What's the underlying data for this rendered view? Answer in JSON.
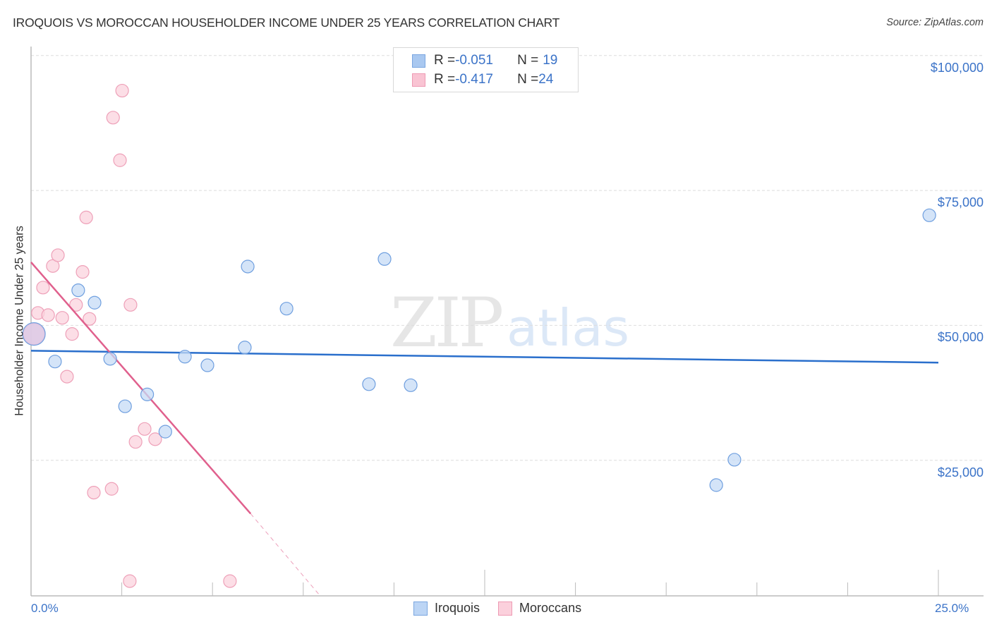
{
  "header": {
    "title": "IROQUOIS VS MOROCCAN HOUSEHOLDER INCOME UNDER 25 YEARS CORRELATION CHART",
    "source": "Source: ZipAtlas.com"
  },
  "watermark": {
    "zip": "ZIP",
    "atlas": "atlas"
  },
  "legend": {
    "rows": [
      {
        "r_label": "R = ",
        "r_value": "-0.051",
        "n_label": "N = ",
        "n_value": "19",
        "color": "#a9c8f0",
        "border": "#7aa6e0"
      },
      {
        "r_label": "R = ",
        "r_value": "-0.417",
        "n_label": "N = ",
        "n_value": "24",
        "color": "#f9c4d3",
        "border": "#ee9ab3"
      }
    ]
  },
  "bottom_legend": {
    "items": [
      {
        "label": "Iroquois",
        "color": "#bcd5f5",
        "border": "#7aa6e0"
      },
      {
        "label": "Moroccans",
        "color": "#fbd0dc",
        "border": "#ee9ab3"
      }
    ]
  },
  "axes": {
    "y_ticks": [
      "$100,000",
      "$75,000",
      "$50,000",
      "$25,000"
    ],
    "x_ticks": [
      "0.0%",
      "25.0%"
    ],
    "y_title": "Householder Income Under 25 years"
  },
  "colors": {
    "iroquois_fill": "#c6dbf6",
    "iroquois_stroke": "#6f9fdf",
    "iroquois_line": "#2a6fcc",
    "moroccan_fill": "#fbd3de",
    "moroccan_stroke": "#eea0b8",
    "moroccan_line": "#e0608d",
    "tick_label": "#3b73c8",
    "grid": "#dddddd"
  },
  "chart_data": {
    "type": "scatter",
    "title": "IROQUOIS VS MOROCCAN HOUSEHOLDER INCOME UNDER 25 YEARS CORRELATION CHART",
    "xlabel": "",
    "ylabel": "Householder Income Under 25 years",
    "xlim": [
      0,
      25
    ],
    "ylim": [
      0,
      105000
    ],
    "x_unit": "%",
    "y_ticks": [
      25000,
      50000,
      75000,
      100000
    ],
    "x_tick_labels": [
      "0.0%",
      "25.0%"
    ],
    "grid": true,
    "legend_position": "top-center and bottom",
    "series": [
      {
        "name": "Iroquois",
        "R": -0.051,
        "N": 19,
        "trend": {
          "x": [
            0,
            25
          ],
          "y": [
            45300,
            43100
          ]
        },
        "points": [
          [
            0.08,
            48400
          ],
          [
            0.66,
            43300
          ],
          [
            1.3,
            56500
          ],
          [
            1.75,
            54200
          ],
          [
            2.18,
            43800
          ],
          [
            2.59,
            35000
          ],
          [
            3.2,
            37200
          ],
          [
            3.7,
            30300
          ],
          [
            4.24,
            44200
          ],
          [
            4.86,
            42600
          ],
          [
            5.89,
            45900
          ],
          [
            5.97,
            60900
          ],
          [
            7.04,
            53100
          ],
          [
            9.31,
            39100
          ],
          [
            9.74,
            62300
          ],
          [
            10.46,
            38900
          ],
          [
            18.88,
            20400
          ],
          [
            19.38,
            25100
          ],
          [
            24.75,
            70400
          ]
        ]
      },
      {
        "name": "Moroccans",
        "R": -0.417,
        "N": 24,
        "trend": {
          "x": [
            0,
            6.05
          ],
          "y": [
            61700,
            15100
          ],
          "dashed_extension_to": [
            7.95,
            0
          ]
        },
        "points": [
          [
            0.08,
            48400
          ],
          [
            0.19,
            52300
          ],
          [
            0.33,
            57000
          ],
          [
            0.47,
            51900
          ],
          [
            0.6,
            61000
          ],
          [
            0.74,
            63000
          ],
          [
            0.86,
            51400
          ],
          [
            0.99,
            40500
          ],
          [
            1.13,
            48400
          ],
          [
            1.24,
            53800
          ],
          [
            1.42,
            59900
          ],
          [
            1.52,
            70000
          ],
          [
            1.61,
            51200
          ],
          [
            1.73,
            19000
          ],
          [
            2.22,
            19700
          ],
          [
            2.26,
            88500
          ],
          [
            2.45,
            80600
          ],
          [
            2.51,
            93500
          ],
          [
            2.72,
            2600
          ],
          [
            2.74,
            53800
          ],
          [
            2.88,
            28400
          ],
          [
            3.13,
            30800
          ],
          [
            3.42,
            28900
          ],
          [
            5.48,
            2600
          ]
        ]
      }
    ]
  }
}
